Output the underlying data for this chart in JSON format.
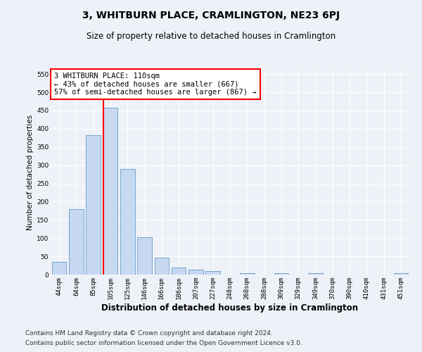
{
  "title": "3, WHITBURN PLACE, CRAMLINGTON, NE23 6PJ",
  "subtitle": "Size of property relative to detached houses in Cramlington",
  "xlabel": "Distribution of detached houses by size in Cramlington",
  "ylabel": "Number of detached properties",
  "footnote1": "Contains HM Land Registry data © Crown copyright and database right 2024.",
  "footnote2": "Contains public sector information licensed under the Open Government Licence v3.0.",
  "bar_labels": [
    "44sqm",
    "64sqm",
    "85sqm",
    "105sqm",
    "125sqm",
    "146sqm",
    "166sqm",
    "186sqm",
    "207sqm",
    "227sqm",
    "248sqm",
    "268sqm",
    "288sqm",
    "309sqm",
    "329sqm",
    "349sqm",
    "370sqm",
    "390sqm",
    "410sqm",
    "431sqm",
    "451sqm"
  ],
  "bar_values": [
    35,
    180,
    383,
    457,
    290,
    103,
    47,
    20,
    14,
    10,
    0,
    4,
    0,
    4,
    0,
    4,
    0,
    0,
    0,
    0,
    4
  ],
  "bar_color": "#c6d9f0",
  "bar_edge_color": "#6699cc",
  "vline_color": "red",
  "vline_x_index": 3,
  "annotation_text": "3 WHITBURN PLACE: 110sqm\n← 43% of detached houses are smaller (667)\n57% of semi-detached houses are larger (867) →",
  "annotation_box_color": "white",
  "annotation_box_edge": "red",
  "ylim": [
    0,
    560
  ],
  "yticks": [
    0,
    50,
    100,
    150,
    200,
    250,
    300,
    350,
    400,
    450,
    500,
    550
  ],
  "background_color": "#eef2f8",
  "grid_color": "#ffffff",
  "title_fontsize": 10,
  "subtitle_fontsize": 8.5,
  "xlabel_fontsize": 8.5,
  "ylabel_fontsize": 7.5,
  "tick_fontsize": 6.5,
  "footnote_fontsize": 6.5,
  "annotation_fontsize": 7.5
}
